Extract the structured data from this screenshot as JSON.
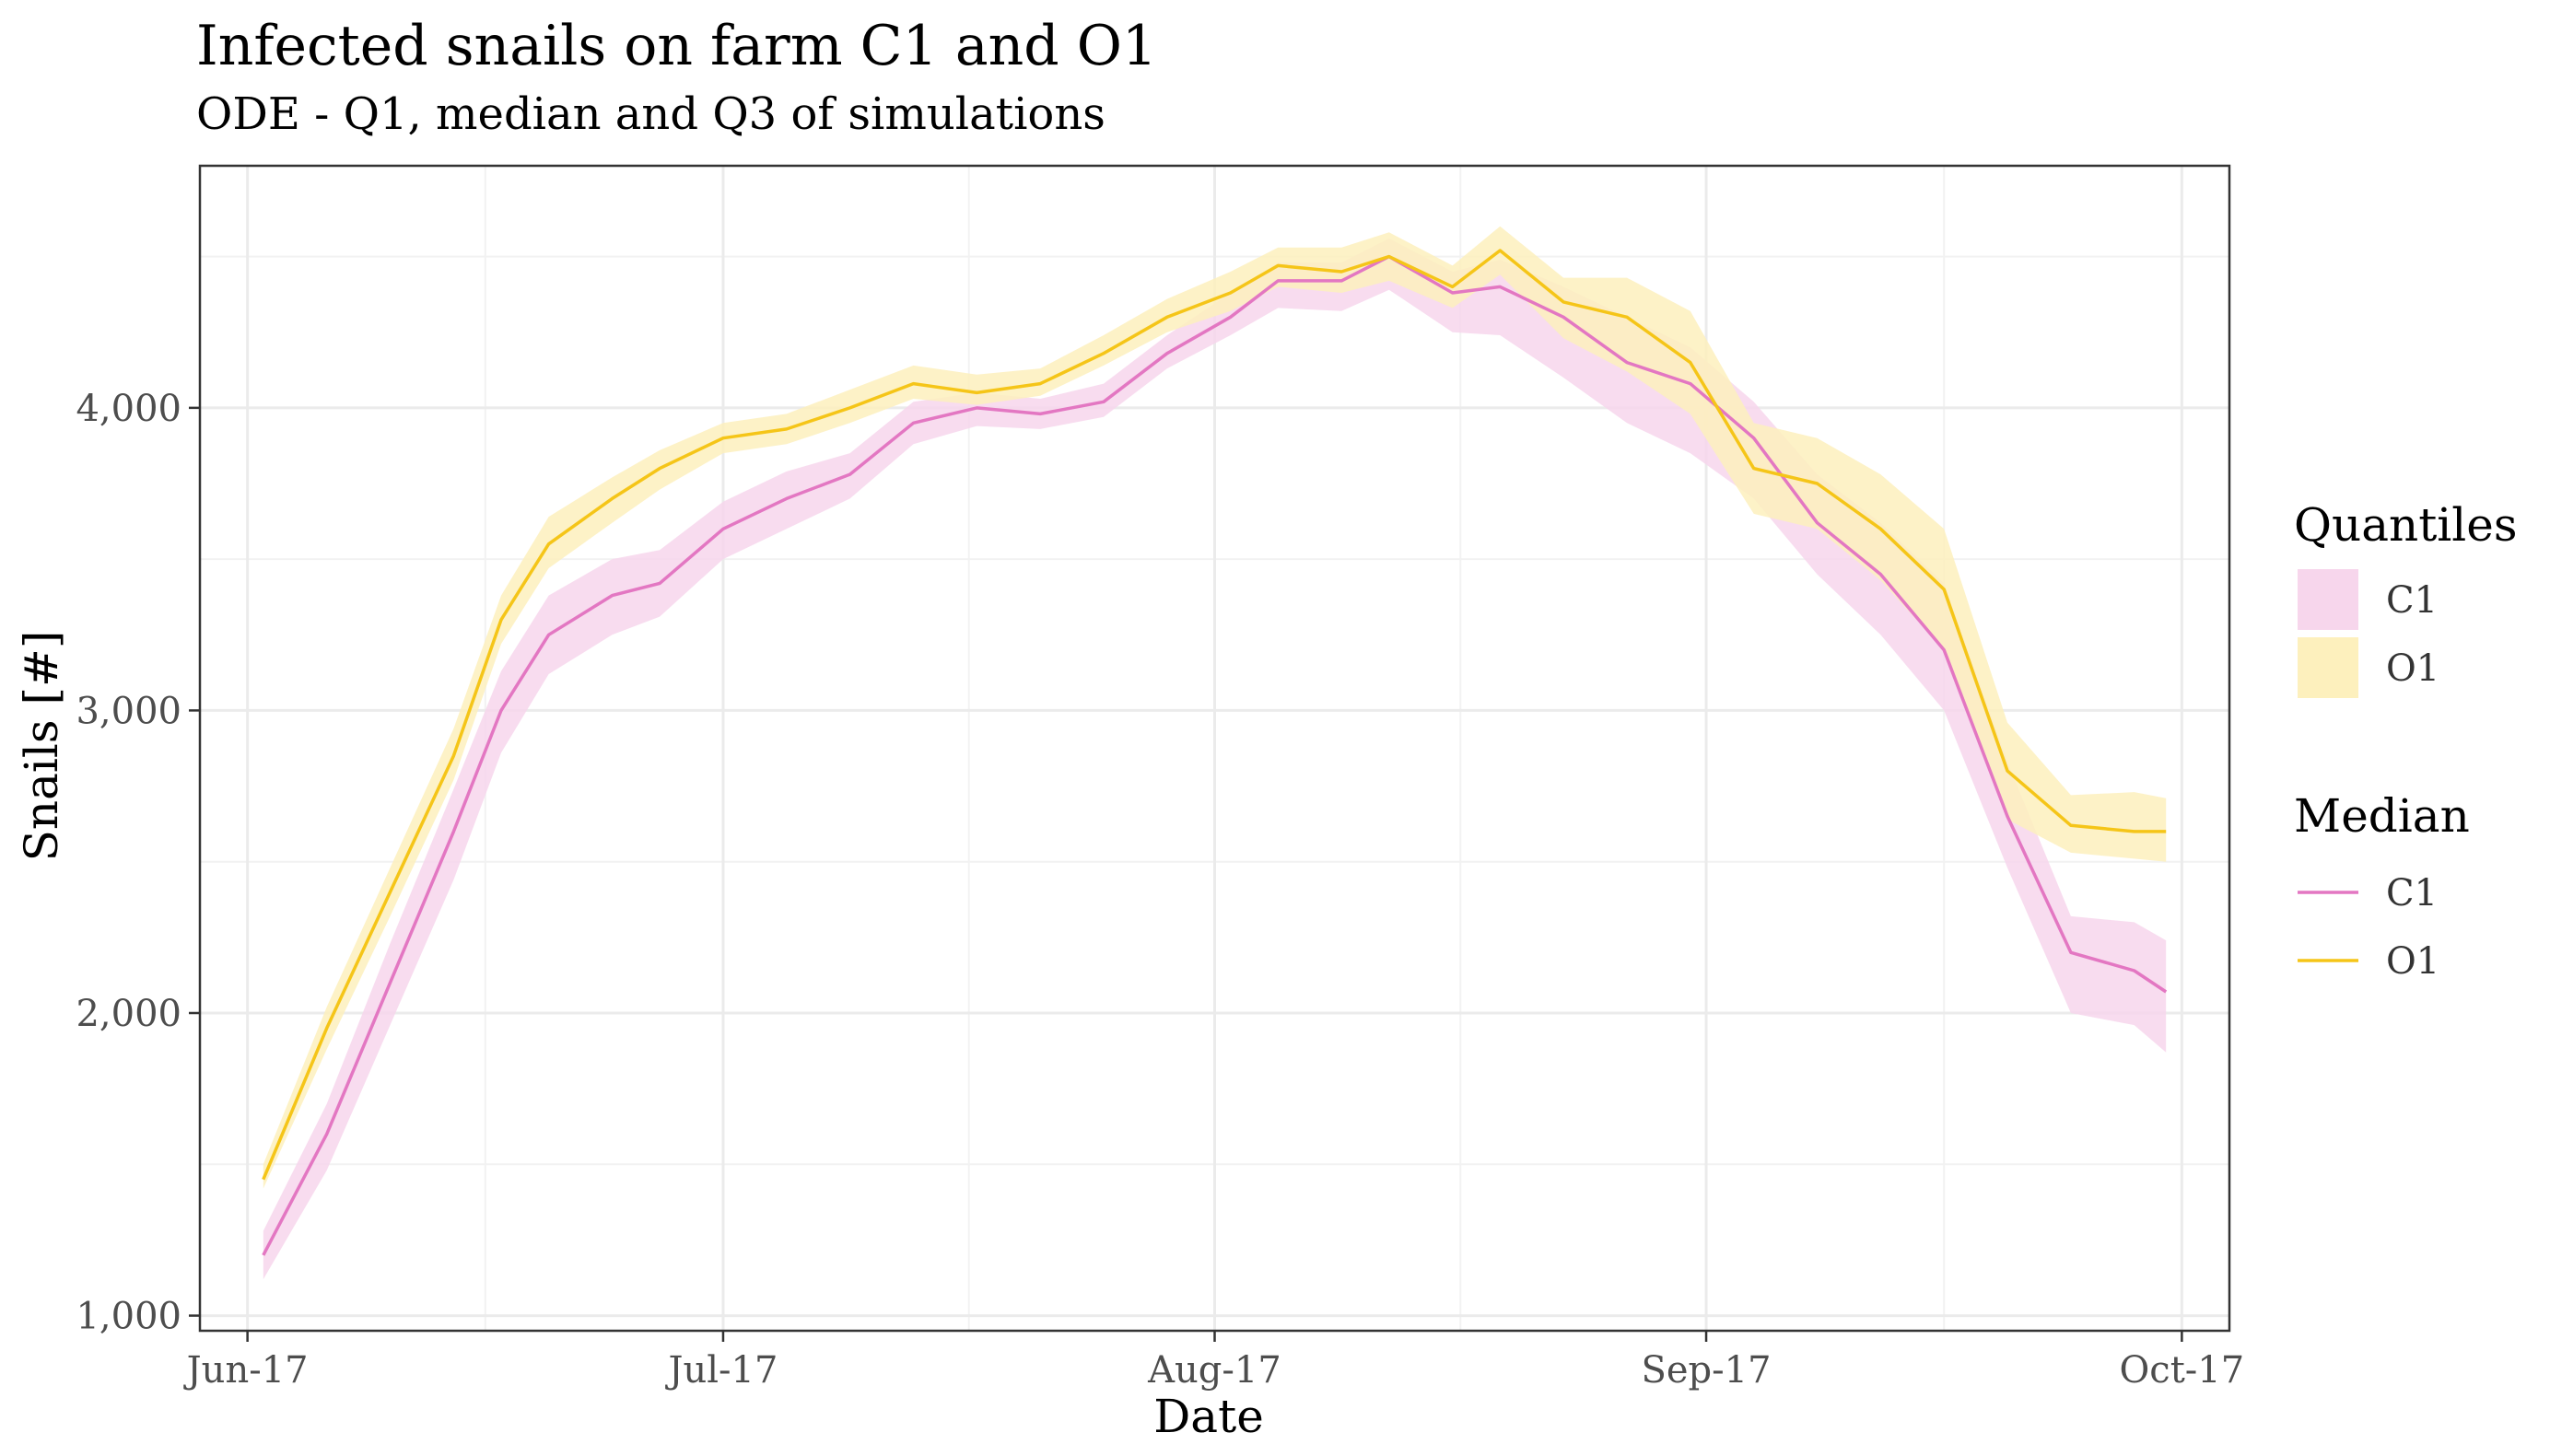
{
  "chart_data": {
    "type": "line",
    "title": "Infected snails on farm C1 and O1",
    "subtitle": "ODE - Q1, median and Q3 of simulations",
    "xlabel": "Date",
    "ylabel": "Snails [#]",
    "xlim": [
      "2017-05-29",
      "2017-10-04"
    ],
    "ylim": [
      950,
      4800
    ],
    "x_ticks": [
      {
        "date": "2017-06-01",
        "label": "Jun-17"
      },
      {
        "date": "2017-07-01",
        "label": "Jul-17"
      },
      {
        "date": "2017-08-01",
        "label": "Aug-17"
      },
      {
        "date": "2017-09-01",
        "label": "Sep-17"
      },
      {
        "date": "2017-10-01",
        "label": "Oct-17"
      }
    ],
    "y_ticks": [
      {
        "value": 1000,
        "label": "1,000"
      },
      {
        "value": 2000,
        "label": "2,000"
      },
      {
        "value": 3000,
        "label": "3,000"
      },
      {
        "value": 4000,
        "label": "4,000"
      }
    ],
    "grid": true,
    "legend_position": "right",
    "legend": {
      "quantiles_title": "Quantiles",
      "median_title": "Median",
      "entries": [
        "C1",
        "O1"
      ]
    },
    "series": [
      {
        "name": "C1",
        "color": "#e377c2",
        "band_color": "#f7d6ec",
        "dates": [
          "2017-06-02",
          "2017-06-06",
          "2017-06-10",
          "2017-06-14",
          "2017-06-17",
          "2017-06-20",
          "2017-06-24",
          "2017-06-27",
          "2017-07-01",
          "2017-07-05",
          "2017-07-09",
          "2017-07-13",
          "2017-07-17",
          "2017-07-21",
          "2017-07-25",
          "2017-07-29",
          "2017-08-02",
          "2017-08-05",
          "2017-08-09",
          "2017-08-12",
          "2017-08-16",
          "2017-08-19",
          "2017-08-23",
          "2017-08-27",
          "2017-08-31",
          "2017-09-04",
          "2017-09-08",
          "2017-09-12",
          "2017-09-16",
          "2017-09-20",
          "2017-09-24",
          "2017-09-28",
          "2017-09-30"
        ],
        "median": [
          1200,
          1600,
          2100,
          2600,
          3000,
          3250,
          3380,
          3420,
          3600,
          3700,
          3780,
          3950,
          4000,
          3980,
          4020,
          4180,
          4300,
          4420,
          4420,
          4500,
          4380,
          4400,
          4300,
          4150,
          4080,
          3900,
          3620,
          3450,
          3200,
          2650,
          2200,
          2140,
          2070
        ],
        "q1": [
          1120,
          1480,
          1960,
          2440,
          2860,
          3120,
          3250,
          3310,
          3500,
          3600,
          3700,
          3880,
          3940,
          3930,
          3970,
          4130,
          4240,
          4330,
          4320,
          4390,
          4250,
          4240,
          4100,
          3950,
          3850,
          3700,
          3450,
          3250,
          3000,
          2480,
          2000,
          1960,
          1870
        ],
        "q3": [
          1280,
          1700,
          2230,
          2740,
          3130,
          3380,
          3500,
          3530,
          3690,
          3790,
          3850,
          4020,
          4050,
          4030,
          4080,
          4240,
          4380,
          4480,
          4480,
          4560,
          4450,
          4490,
          4400,
          4300,
          4200,
          4020,
          3780,
          3620,
          3420,
          2830,
          2320,
          2300,
          2240
        ]
      },
      {
        "name": "O1",
        "color": "#f5c518",
        "band_color": "#fdf0bd",
        "dates": [
          "2017-06-02",
          "2017-06-06",
          "2017-06-10",
          "2017-06-14",
          "2017-06-17",
          "2017-06-20",
          "2017-06-24",
          "2017-06-27",
          "2017-07-01",
          "2017-07-05",
          "2017-07-09",
          "2017-07-13",
          "2017-07-17",
          "2017-07-21",
          "2017-07-25",
          "2017-07-29",
          "2017-08-02",
          "2017-08-05",
          "2017-08-09",
          "2017-08-12",
          "2017-08-16",
          "2017-08-19",
          "2017-08-23",
          "2017-08-27",
          "2017-08-31",
          "2017-09-04",
          "2017-09-08",
          "2017-09-12",
          "2017-09-16",
          "2017-09-20",
          "2017-09-24",
          "2017-09-28",
          "2017-09-30"
        ],
        "median": [
          1450,
          1950,
          2400,
          2850,
          3300,
          3550,
          3700,
          3800,
          3900,
          3930,
          4000,
          4080,
          4050,
          4080,
          4180,
          4300,
          4380,
          4470,
          4450,
          4500,
          4400,
          4520,
          4350,
          4300,
          4150,
          3800,
          3750,
          3600,
          3400,
          2800,
          2620,
          2600,
          2600
        ],
        "q1": [
          1420,
          1880,
          2320,
          2770,
          3220,
          3470,
          3620,
          3730,
          3850,
          3880,
          3950,
          4030,
          4010,
          4040,
          4140,
          4250,
          4320,
          4400,
          4380,
          4420,
          4330,
          4440,
          4230,
          4120,
          3980,
          3650,
          3600,
          3430,
          3200,
          2640,
          2530,
          2510,
          2500
        ],
        "q3": [
          1500,
          2020,
          2480,
          2940,
          3380,
          3640,
          3770,
          3860,
          3950,
          3980,
          4060,
          4140,
          4110,
          4130,
          4240,
          4360,
          4450,
          4530,
          4530,
          4580,
          4470,
          4600,
          4430,
          4430,
          4320,
          3950,
          3900,
          3780,
          3600,
          2960,
          2720,
          2730,
          2710
        ]
      }
    ]
  }
}
